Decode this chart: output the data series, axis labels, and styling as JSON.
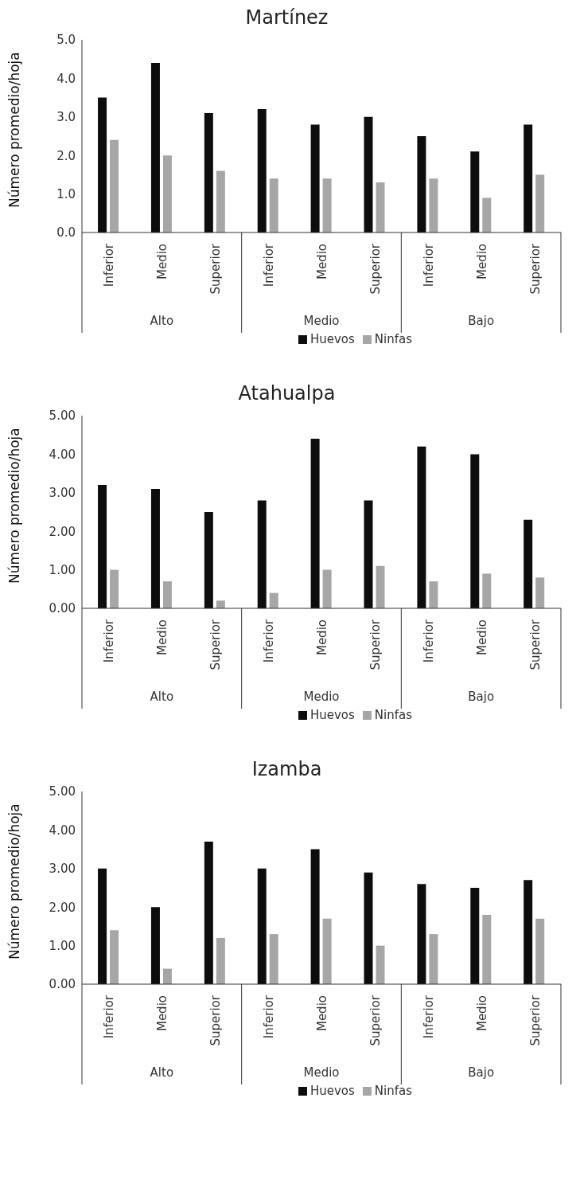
{
  "chart_data": [
    {
      "type": "bar",
      "title": "Martínez",
      "ylabel": "Número promedio/hoja",
      "categories": [
        "Inferior",
        "Medio",
        "Superior",
        "Inferior",
        "Medio",
        "Superior",
        "Inferior",
        "Medio",
        "Superior"
      ],
      "annotations": [
        "Alto",
        "Medio",
        "Bajo"
      ],
      "series": [
        {
          "name": "Huevos",
          "color": "#0d0d0d",
          "values": [
            3.5,
            4.4,
            3.1,
            3.2,
            2.8,
            3.0,
            2.5,
            2.1,
            2.8
          ]
        },
        {
          "name": "Ninfas",
          "color": "#a6a6a6",
          "values": [
            2.4,
            2.0,
            1.6,
            1.4,
            1.4,
            1.3,
            1.4,
            0.9,
            1.5
          ]
        }
      ],
      "ylim": [
        0,
        5
      ],
      "yticks": [
        {
          "value": 0,
          "label": "0.0"
        },
        {
          "value": 1,
          "label": "1.0"
        },
        {
          "value": 2,
          "label": "2.0"
        },
        {
          "value": 3,
          "label": "3.0"
        },
        {
          "value": 4,
          "label": "4.0"
        },
        {
          "value": 5,
          "label": "5.0"
        }
      ],
      "grid": false,
      "legend": "bottom"
    },
    {
      "type": "bar",
      "title": "Atahualpa",
      "ylabel": "Número promedio/hoja",
      "categories": [
        "Inferior",
        "Medio",
        "Superior",
        "Inferior",
        "Medio",
        "Superior",
        "Inferior",
        "Medio",
        "Superior"
      ],
      "annotations": [
        "Alto",
        "Medio",
        "Bajo"
      ],
      "series": [
        {
          "name": "Huevos",
          "color": "#0d0d0d",
          "values": [
            3.2,
            3.1,
            2.5,
            2.8,
            4.4,
            2.8,
            4.2,
            4.0,
            2.3
          ]
        },
        {
          "name": "Ninfas",
          "color": "#a6a6a6",
          "values": [
            1.0,
            0.7,
            0.2,
            0.4,
            1.0,
            1.1,
            0.7,
            0.9,
            0.8
          ]
        }
      ],
      "ylim": [
        0,
        5
      ],
      "yticks": [
        {
          "value": 0,
          "label": "0.00"
        },
        {
          "value": 1,
          "label": "1.00"
        },
        {
          "value": 2,
          "label": "2.00"
        },
        {
          "value": 3,
          "label": "3.00"
        },
        {
          "value": 4,
          "label": "4.00"
        },
        {
          "value": 5,
          "label": "5.00"
        }
      ],
      "grid": false,
      "legend": "bottom"
    },
    {
      "type": "bar",
      "title": "Izamba",
      "ylabel": "Número promedio/hoja",
      "categories": [
        "Inferior",
        "Medio",
        "Superior",
        "Inferior",
        "Medio",
        "Superior",
        "Inferior",
        "Medio",
        "Superior"
      ],
      "annotations": [
        "Alto",
        "Medio",
        "Bajo"
      ],
      "series": [
        {
          "name": "Huevos",
          "color": "#0d0d0d",
          "values": [
            3.0,
            2.0,
            3.7,
            3.0,
            3.5,
            2.9,
            2.6,
            2.5,
            2.7
          ]
        },
        {
          "name": "Ninfas",
          "color": "#a6a6a6",
          "values": [
            1.4,
            0.4,
            1.2,
            1.3,
            1.7,
            1.0,
            1.3,
            1.8,
            1.7
          ]
        }
      ],
      "ylim": [
        0,
        5
      ],
      "yticks": [
        {
          "value": 0,
          "label": "0.00"
        },
        {
          "value": 1,
          "label": "1.00"
        },
        {
          "value": 2,
          "label": "2.00"
        },
        {
          "value": 3,
          "label": "3.00"
        },
        {
          "value": 4,
          "label": "4.00"
        },
        {
          "value": 5,
          "label": "5.00"
        }
      ],
      "grid": false,
      "legend": "bottom"
    }
  ]
}
